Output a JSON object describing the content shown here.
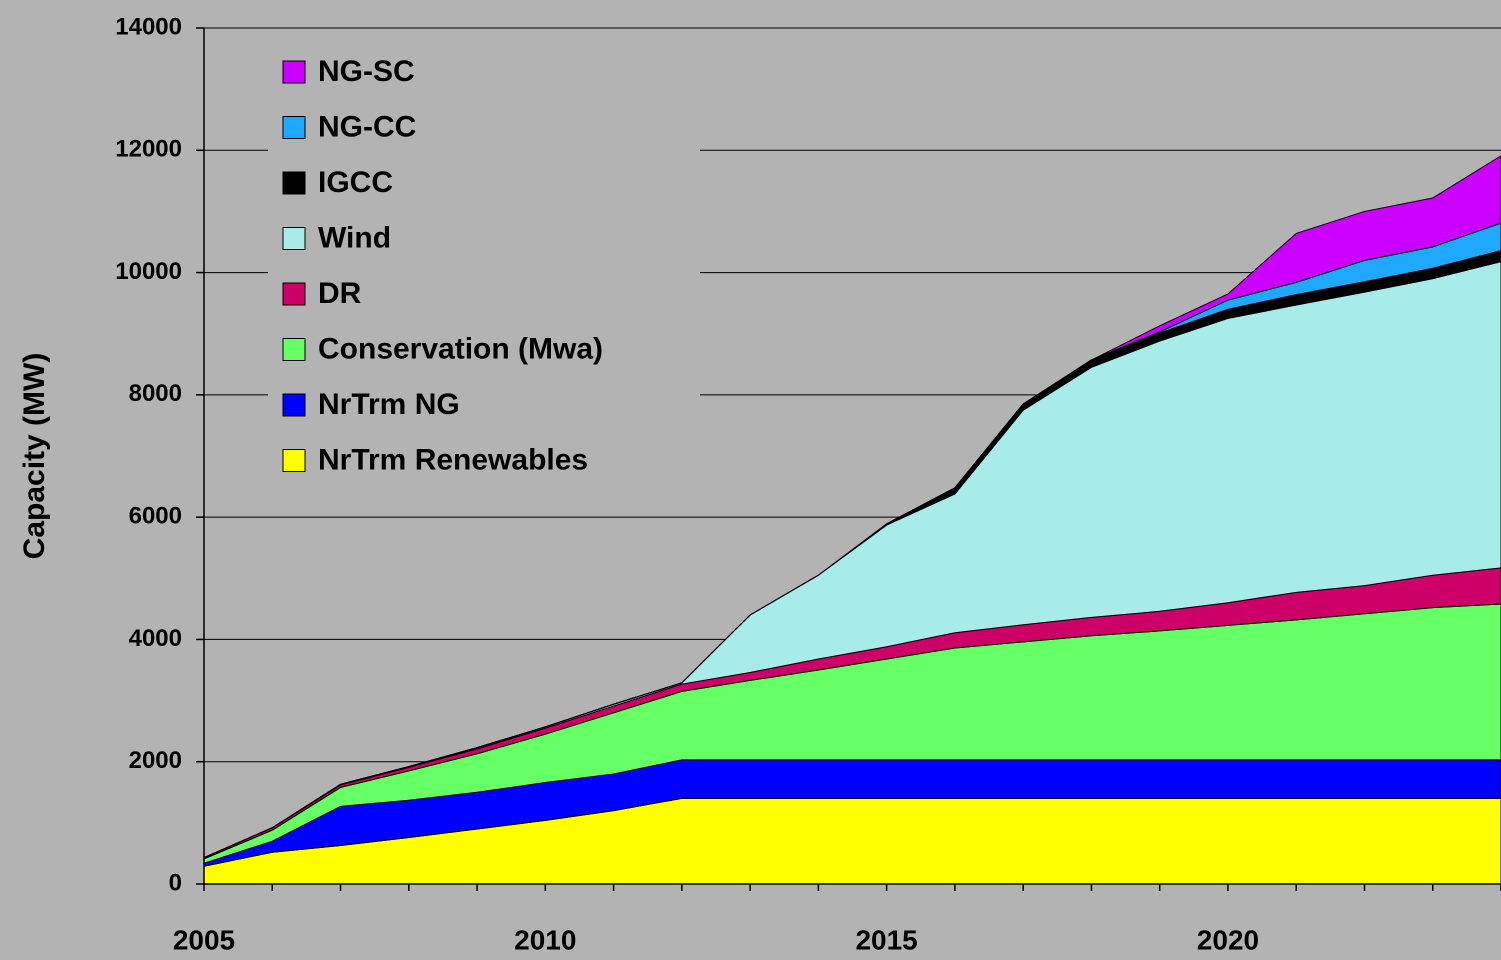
{
  "chart_data": {
    "type": "stacked_area",
    "ylabel": "Capacity (MW)",
    "x": [
      2005,
      2006,
      2007,
      2008,
      2009,
      2010,
      2011,
      2012,
      2013,
      2014,
      2015,
      2016,
      2017,
      2018,
      2019,
      2020,
      2021,
      2022,
      2023,
      2024
    ],
    "xlim": [
      2005,
      2024
    ],
    "xticks": [
      2005,
      2010,
      2015,
      2020
    ],
    "ylim": [
      0,
      14000
    ],
    "yticks": [
      0,
      2000,
      4000,
      6000,
      8000,
      10000,
      12000,
      14000
    ],
    "grid": true,
    "legend": "upper left",
    "series": [
      {
        "name": "NrTrm Renewables",
        "color": "#ffff00",
        "values": [
          290,
          520,
          630,
          760,
          900,
          1040,
          1200,
          1400,
          1400,
          1400,
          1400,
          1400,
          1400,
          1400,
          1400,
          1400,
          1400,
          1400,
          1400,
          1400
        ]
      },
      {
        "name": "NrTrm NG",
        "color": "#0000ff",
        "values": [
          50,
          180,
          640,
          610,
          600,
          620,
          600,
          630,
          630,
          630,
          630,
          630,
          630,
          630,
          630,
          630,
          630,
          630,
          630,
          630
        ]
      },
      {
        "name": "Conservation (Mwa)",
        "color": "#66ff66",
        "values": [
          70,
          180,
          310,
          480,
          630,
          790,
          1000,
          1120,
          1300,
          1470,
          1650,
          1830,
          1930,
          2030,
          2110,
          2200,
          2290,
          2390,
          2490,
          2550
        ]
      },
      {
        "name": "DR",
        "color": "#cc0066",
        "values": [
          20,
          40,
          40,
          60,
          80,
          100,
          110,
          120,
          130,
          180,
          200,
          250,
          280,
          300,
          320,
          370,
          450,
          460,
          530,
          590
        ]
      },
      {
        "name": "Wind",
        "color": "#a8ecea",
        "values": [
          0,
          0,
          10,
          10,
          20,
          20,
          30,
          20,
          940,
          1370,
          1990,
          2270,
          3510,
          4090,
          4420,
          4650,
          4700,
          4800,
          4850,
          5010
        ]
      },
      {
        "name": "IGCC",
        "color": "#000000",
        "values": [
          0,
          0,
          0,
          0,
          0,
          0,
          0,
          0,
          0,
          0,
          20,
          100,
          100,
          120,
          130,
          150,
          170,
          170,
          170,
          180
        ]
      },
      {
        "name": "NG-CC",
        "color": "#1ea8ff",
        "values": [
          0,
          0,
          0,
          0,
          0,
          0,
          0,
          0,
          0,
          0,
          0,
          0,
          0,
          0,
          20,
          150,
          200,
          350,
          350,
          450
        ]
      },
      {
        "name": "NG-SC",
        "color": "#cc00ff",
        "values": [
          0,
          0,
          0,
          0,
          0,
          0,
          0,
          0,
          0,
          0,
          0,
          0,
          0,
          0,
          100,
          100,
          800,
          800,
          800,
          1100
        ]
      }
    ]
  }
}
